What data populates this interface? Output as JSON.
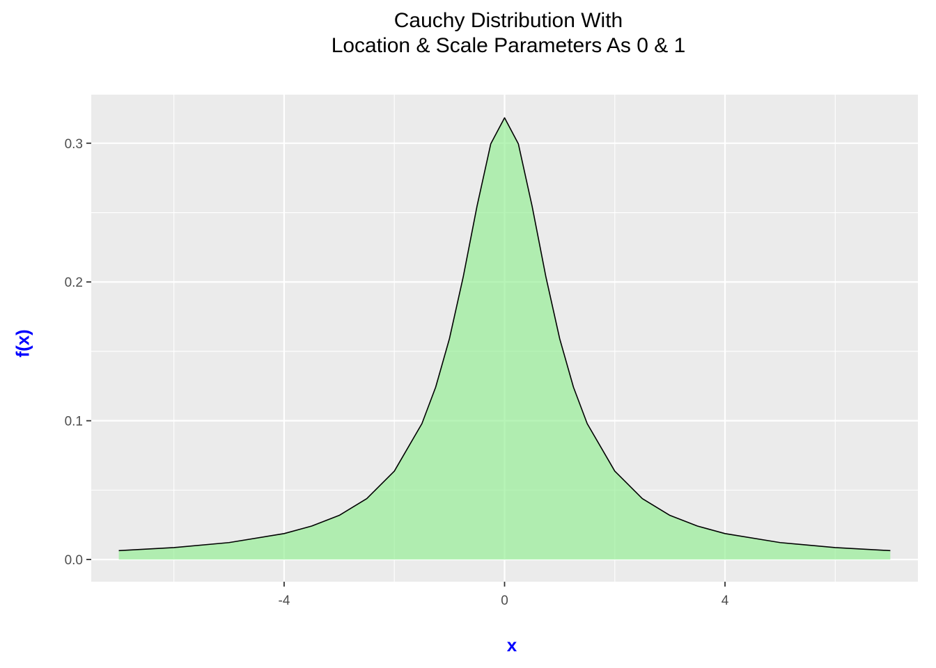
{
  "chart_data": {
    "type": "area",
    "title_lines": [
      "Cauchy Distribution With",
      "Location & Scale Parameters As 0 & 1"
    ],
    "xlabel": "x",
    "ylabel": "f(x)",
    "xlim": [
      -7.5,
      7.5
    ],
    "ylim": [
      -0.016,
      0.335
    ],
    "x_ticks": [
      -4,
      0,
      4
    ],
    "x_tick_labels": [
      "-4",
      "0",
      "4"
    ],
    "x_minor_ticks": [
      -6,
      -2,
      2,
      6
    ],
    "y_ticks": [
      0.0,
      0.1,
      0.2,
      0.3
    ],
    "y_tick_labels": [
      "0.0",
      "0.1",
      "0.2",
      "0.3"
    ],
    "y_minor_ticks": [
      0.05,
      0.15,
      0.25
    ],
    "grid": true,
    "series": [
      {
        "x": [
          -7,
          -6,
          -5,
          -4,
          -3.5,
          -3,
          -2.5,
          -2,
          -1.5,
          -1.25,
          -1,
          -0.75,
          -0.5,
          -0.25,
          0,
          0.25,
          0.5,
          0.75,
          1,
          1.25,
          1.5,
          2,
          2.5,
          3,
          3.5,
          4,
          5,
          6,
          7
        ],
        "y": [
          0.0064,
          0.0086,
          0.0122,
          0.0187,
          0.0241,
          0.0318,
          0.0439,
          0.0637,
          0.0979,
          0.1242,
          0.1592,
          0.2037,
          0.2546,
          0.2996,
          0.3183,
          0.2996,
          0.2546,
          0.2037,
          0.1592,
          0.1242,
          0.0979,
          0.0637,
          0.0439,
          0.0318,
          0.0241,
          0.0187,
          0.0122,
          0.0086,
          0.0064
        ]
      }
    ],
    "colors": {
      "panel": "#ebebeb",
      "grid": "#ffffff",
      "fill": "#90ee90",
      "line": "#000000",
      "axis_title": "#0000ff",
      "tick_text": "#4d4d4d"
    }
  }
}
